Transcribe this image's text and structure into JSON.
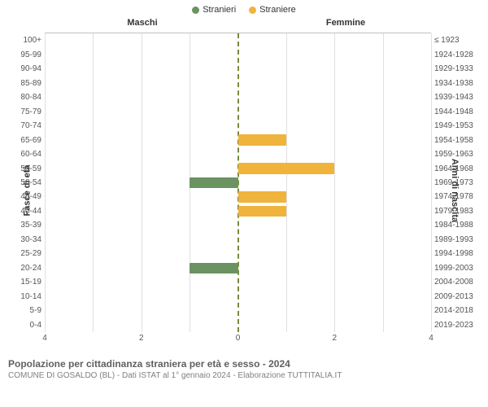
{
  "legend": {
    "male": {
      "label": "Stranieri",
      "color": "#6b9362"
    },
    "female": {
      "label": "Straniere",
      "color": "#f0b43c"
    }
  },
  "headers": {
    "male": "Maschi",
    "female": "Femmine"
  },
  "axis_labels": {
    "left": "Fasce di età",
    "right": "Anni di nascita"
  },
  "chart": {
    "type": "population-pyramid",
    "xmax": 4,
    "xticks": [
      4,
      2,
      0,
      2,
      4
    ],
    "background_color": "#ffffff",
    "grid_color": "#e0e0e0",
    "center_line_color": "#7a8a3a",
    "male_color": "#6b9362",
    "female_color": "#f0b43c",
    "tick_color": "#555555",
    "tick_fontsize": 10,
    "rows": [
      {
        "age": "100+",
        "years": "≤ 1923",
        "m": 0,
        "f": 0
      },
      {
        "age": "95-99",
        "years": "1924-1928",
        "m": 0,
        "f": 0
      },
      {
        "age": "90-94",
        "years": "1929-1933",
        "m": 0,
        "f": 0
      },
      {
        "age": "85-89",
        "years": "1934-1938",
        "m": 0,
        "f": 0
      },
      {
        "age": "80-84",
        "years": "1939-1943",
        "m": 0,
        "f": 0
      },
      {
        "age": "75-79",
        "years": "1944-1948",
        "m": 0,
        "f": 0
      },
      {
        "age": "70-74",
        "years": "1949-1953",
        "m": 0,
        "f": 0
      },
      {
        "age": "65-69",
        "years": "1954-1958",
        "m": 0,
        "f": 1
      },
      {
        "age": "60-64",
        "years": "1959-1963",
        "m": 0,
        "f": 0
      },
      {
        "age": "55-59",
        "years": "1964-1968",
        "m": 0,
        "f": 2
      },
      {
        "age": "50-54",
        "years": "1969-1973",
        "m": 1,
        "f": 0
      },
      {
        "age": "45-49",
        "years": "1974-1978",
        "m": 0,
        "f": 1
      },
      {
        "age": "40-44",
        "years": "1979-1983",
        "m": 0,
        "f": 1
      },
      {
        "age": "35-39",
        "years": "1984-1988",
        "m": 0,
        "f": 0
      },
      {
        "age": "30-34",
        "years": "1989-1993",
        "m": 0,
        "f": 0
      },
      {
        "age": "25-29",
        "years": "1994-1998",
        "m": 0,
        "f": 0
      },
      {
        "age": "20-24",
        "years": "1999-2003",
        "m": 1,
        "f": 0
      },
      {
        "age": "15-19",
        "years": "2004-2008",
        "m": 0,
        "f": 0
      },
      {
        "age": "10-14",
        "years": "2009-2013",
        "m": 0,
        "f": 0
      },
      {
        "age": "5-9",
        "years": "2014-2018",
        "m": 0,
        "f": 0
      },
      {
        "age": "0-4",
        "years": "2019-2023",
        "m": 0,
        "f": 0
      }
    ]
  },
  "footer": {
    "title": "Popolazione per cittadinanza straniera per età e sesso - 2024",
    "subtitle": "COMUNE DI GOSALDO (BL) - Dati ISTAT al 1° gennaio 2024 - Elaborazione TUTTITALIA.IT",
    "title_color": "#606060",
    "subtitle_color": "#808080",
    "title_fontsize": 12,
    "subtitle_fontsize": 10
  }
}
